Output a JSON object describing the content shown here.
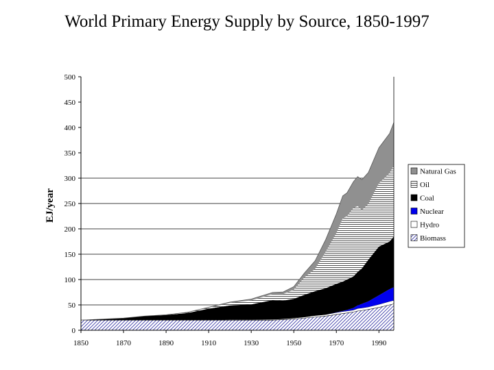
{
  "chart_data": {
    "type": "area",
    "title": "World Primary Energy Supply by Source, 1850-1997",
    "ylabel": "EJ/year",
    "xlabel": "",
    "xlim": [
      1850,
      1997
    ],
    "ylim": [
      0,
      500
    ],
    "x_ticks": [
      1850,
      1870,
      1890,
      1910,
      1930,
      1950,
      1970,
      1990
    ],
    "y_ticks": [
      0,
      50,
      100,
      150,
      200,
      250,
      300,
      350,
      400,
      450,
      500
    ],
    "gridlines": [
      50,
      100,
      150,
      200,
      250,
      300
    ],
    "stacked": true,
    "x": [
      1850,
      1860,
      1870,
      1880,
      1890,
      1900,
      1910,
      1920,
      1930,
      1940,
      1945,
      1950,
      1955,
      1960,
      1965,
      1970,
      1973,
      1975,
      1978,
      1980,
      1982,
      1985,
      1990,
      1995,
      1997
    ],
    "series": [
      {
        "name": "Biomass",
        "color": "#ffffff",
        "pattern": "diagonal",
        "values": [
          20,
          20,
          20,
          20,
          20,
          20,
          20,
          20,
          20,
          20,
          21,
          22,
          24,
          26,
          28,
          31,
          33,
          34,
          36,
          38,
          39,
          41,
          45,
          50,
          52
        ]
      },
      {
        "name": "Hydro",
        "color": "#ffffff",
        "pattern": "none",
        "values": [
          0,
          0,
          0,
          0,
          0,
          0,
          0.5,
          1,
          1,
          1.5,
          1.5,
          2,
          2,
          3,
          3,
          4,
          4,
          4,
          4,
          5,
          5,
          5,
          6,
          7,
          7
        ]
      },
      {
        "name": "Nuclear",
        "color": "#0000ee",
        "pattern": "solid",
        "values": [
          0,
          0,
          0,
          0,
          0,
          0,
          0,
          0,
          0,
          0,
          0,
          0,
          0,
          0,
          0,
          0.5,
          1,
          2,
          4,
          6,
          8,
          11,
          18,
          24,
          26
        ]
      },
      {
        "name": "Coal",
        "color": "#000000",
        "pattern": "solid",
        "values": [
          0,
          2,
          4,
          8,
          10,
          14,
          22,
          28,
          30,
          38,
          36,
          38,
          44,
          48,
          52,
          56,
          58,
          60,
          62,
          66,
          70,
          82,
          96,
          94,
          100
        ]
      },
      {
        "name": "Oil",
        "color": "#ffffff",
        "pattern": "horizontal",
        "values": [
          0,
          0,
          0,
          0,
          0.5,
          1,
          2,
          5,
          8,
          12,
          13,
          18,
          34,
          44,
          72,
          100,
          125,
          125,
          135,
          130,
          115,
          110,
          125,
          135,
          140
        ]
      },
      {
        "name": "Natural Gas",
        "color": "#909090",
        "pattern": "solid",
        "values": [
          0,
          0,
          0,
          0,
          0,
          0.5,
          1,
          1.5,
          2.5,
          3,
          4,
          6,
          9,
          16,
          24,
          38,
          44,
          46,
          52,
          58,
          60,
          62,
          70,
          78,
          85
        ]
      }
    ]
  }
}
